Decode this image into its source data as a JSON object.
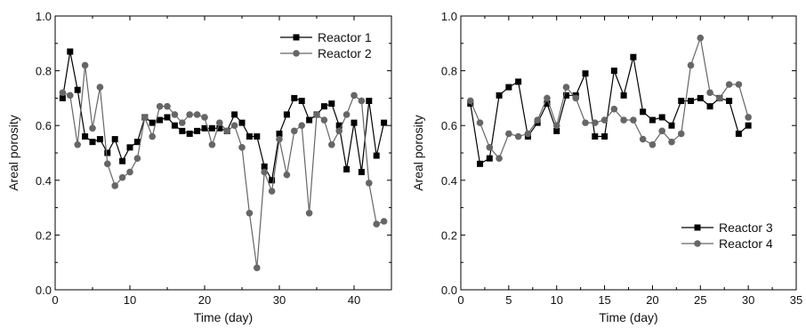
{
  "chart_data": [
    {
      "type": "line",
      "xlabel": "Time (day)",
      "ylabel": "Areal porosity",
      "xlim": [
        0,
        45
      ],
      "ylim": [
        0.0,
        1.0
      ],
      "xticks": [
        0,
        10,
        20,
        30,
        40
      ],
      "yticks": [
        0.0,
        0.2,
        0.4,
        0.6,
        0.8,
        1.0
      ],
      "ytick_labels": [
        "0.0",
        "0.2",
        "0.4",
        "0.6",
        "0.8",
        "1.0"
      ],
      "legend_position": "top-right",
      "series": [
        {
          "name": "Reactor 1",
          "marker": "square",
          "color": "#000000",
          "x": [
            1,
            2,
            3,
            4,
            5,
            6,
            7,
            8,
            9,
            10,
            11,
            12,
            13,
            14,
            15,
            16,
            17,
            18,
            19,
            20,
            21,
            22,
            23,
            24,
            25,
            26,
            27,
            28,
            29,
            30,
            31,
            32,
            33,
            34,
            35,
            36,
            37,
            38,
            39,
            40,
            41,
            42,
            43,
            44
          ],
          "y": [
            0.7,
            0.87,
            0.73,
            0.56,
            0.54,
            0.55,
            0.5,
            0.55,
            0.47,
            0.52,
            0.54,
            0.63,
            0.61,
            0.62,
            0.63,
            0.6,
            0.58,
            0.57,
            0.58,
            0.59,
            0.59,
            0.59,
            0.58,
            0.64,
            0.61,
            0.56,
            0.56,
            0.45,
            0.4,
            0.57,
            0.64,
            0.7,
            0.69,
            0.62,
            0.64,
            0.67,
            0.68,
            0.6,
            0.44,
            0.61,
            0.43,
            0.69,
            0.49,
            0.61
          ]
        },
        {
          "name": "Reactor 2",
          "marker": "circle",
          "color": "#666666",
          "x": [
            1,
            2,
            3,
            4,
            5,
            6,
            7,
            8,
            9,
            10,
            11,
            12,
            13,
            14,
            15,
            16,
            17,
            18,
            19,
            20,
            21,
            22,
            23,
            24,
            25,
            26,
            27,
            28,
            29,
            30,
            31,
            32,
            33,
            34,
            35,
            36,
            37,
            38,
            39,
            40,
            41,
            42,
            43,
            44
          ],
          "y": [
            0.72,
            0.71,
            0.53,
            0.82,
            0.59,
            0.74,
            0.46,
            0.38,
            0.41,
            0.43,
            0.48,
            0.63,
            0.56,
            0.67,
            0.67,
            0.64,
            0.61,
            0.64,
            0.64,
            0.63,
            0.53,
            0.61,
            0.58,
            0.6,
            0.52,
            0.28,
            0.08,
            0.43,
            0.36,
            0.55,
            0.42,
            0.58,
            0.6,
            0.28,
            0.64,
            0.62,
            0.53,
            0.58,
            0.64,
            0.71,
            0.69,
            0.39,
            0.24,
            0.25
          ]
        }
      ]
    },
    {
      "type": "line",
      "xlabel": "Time (day)",
      "ylabel": "Areal porosity",
      "xlim": [
        0,
        35
      ],
      "ylim": [
        0.0,
        1.0
      ],
      "xticks": [
        0,
        5,
        10,
        15,
        20,
        25,
        30,
        35
      ],
      "yticks": [
        0.0,
        0.2,
        0.4,
        0.6,
        0.8,
        1.0
      ],
      "ytick_labels": [
        "0.0",
        "0.2",
        "0.4",
        "0.6",
        "0.8",
        "1.0"
      ],
      "legend_position": "bottom-right",
      "series": [
        {
          "name": "Reactor 3",
          "marker": "square",
          "color": "#000000",
          "x": [
            1,
            2,
            3,
            4,
            5,
            6,
            7,
            8,
            9,
            10,
            11,
            12,
            13,
            14,
            15,
            16,
            17,
            18,
            19,
            20,
            21,
            22,
            23,
            24,
            25,
            26,
            27,
            28,
            29,
            30
          ],
          "y": [
            0.68,
            0.46,
            0.48,
            0.71,
            0.74,
            0.76,
            0.56,
            0.61,
            0.68,
            0.58,
            0.71,
            0.71,
            0.79,
            0.56,
            0.56,
            0.8,
            0.71,
            0.85,
            0.65,
            0.62,
            0.63,
            0.6,
            0.69,
            0.69,
            0.7,
            0.67,
            0.7,
            0.69,
            0.57,
            0.6
          ]
        },
        {
          "name": "Reactor 4",
          "marker": "circle",
          "color": "#666666",
          "x": [
            1,
            2,
            3,
            4,
            5,
            6,
            7,
            8,
            9,
            10,
            11,
            12,
            13,
            14,
            15,
            16,
            17,
            18,
            19,
            20,
            21,
            22,
            23,
            24,
            25,
            26,
            27,
            28,
            29,
            30
          ],
          "y": [
            0.69,
            0.61,
            0.52,
            0.48,
            0.57,
            0.56,
            0.57,
            0.62,
            0.7,
            0.6,
            0.74,
            0.7,
            0.61,
            0.61,
            0.62,
            0.66,
            0.62,
            0.62,
            0.55,
            0.53,
            0.58,
            0.54,
            0.57,
            0.82,
            0.92,
            0.72,
            0.7,
            0.75,
            0.75,
            0.63
          ]
        }
      ]
    }
  ]
}
